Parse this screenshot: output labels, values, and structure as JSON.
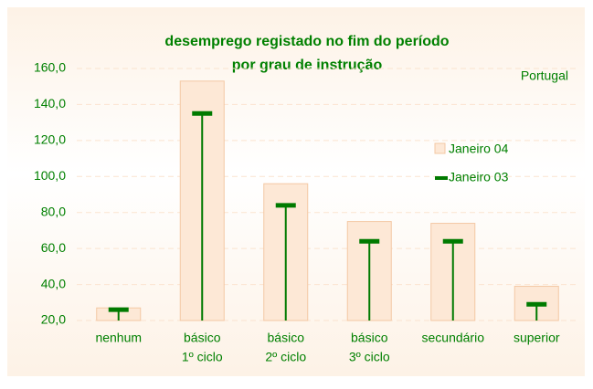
{
  "chart_data": {
    "type": "bar-marker",
    "title": [
      "desemprego  registado no fim do período",
      "por grau de instrução"
    ],
    "annotation": "Portugal",
    "categories": [
      [
        "nenhum"
      ],
      [
        "básico",
        "1º ciclo"
      ],
      [
        "básico",
        "2º ciclo"
      ],
      [
        "básico",
        "3º ciclo"
      ],
      [
        "secundário"
      ],
      [
        "superior"
      ]
    ],
    "series": [
      {
        "name": "Janeiro 04",
        "color": "#fde8d6",
        "values": [
          27,
          153,
          96,
          75,
          74,
          39
        ]
      },
      {
        "name": "Janeiro 03",
        "color": "#007a00",
        "values": [
          26,
          135,
          84,
          64,
          64,
          29
        ]
      }
    ],
    "ylim": [
      20,
      160
    ],
    "yticks": [
      {
        "value": 20,
        "label": "20,0"
      },
      {
        "value": 40,
        "label": "40,0"
      },
      {
        "value": 60,
        "label": "60,0"
      },
      {
        "value": 80,
        "label": "80,0"
      },
      {
        "value": 100,
        "label": "100,0"
      },
      {
        "value": 120,
        "label": "120,0"
      },
      {
        "value": 140,
        "label": "140,0"
      },
      {
        "value": 160,
        "label": "160,0"
      }
    ],
    "grid": true
  }
}
